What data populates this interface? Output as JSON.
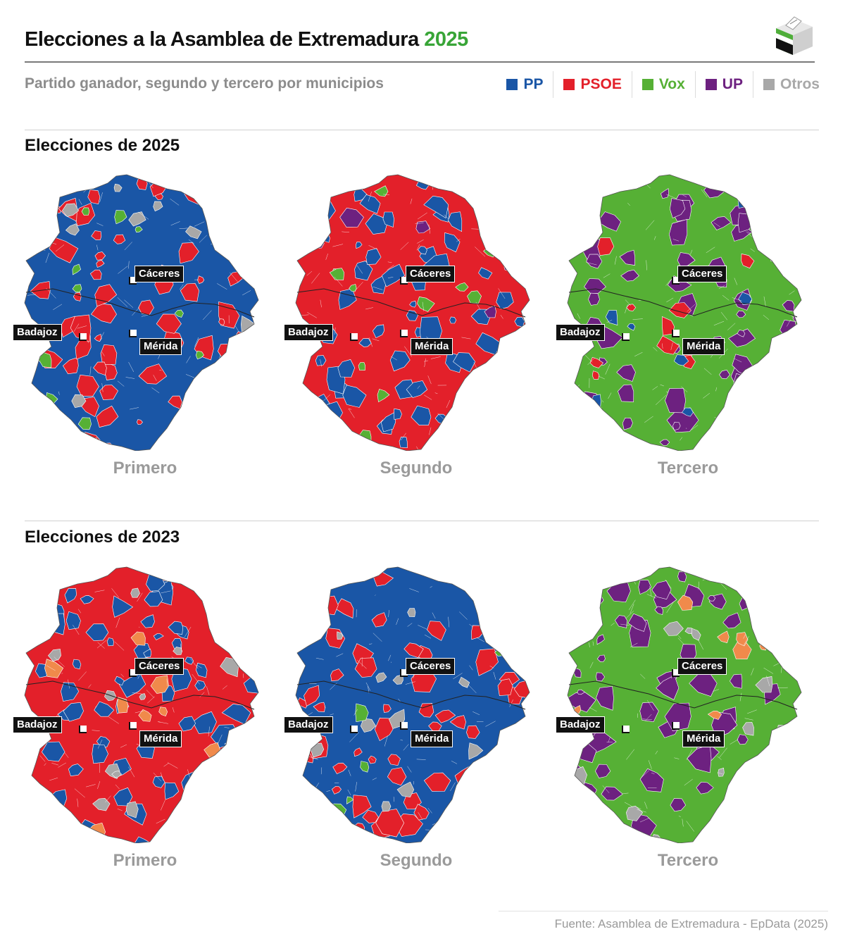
{
  "header": {
    "title_main": "Elecciones a la Asamblea de Extremadura ",
    "title_year": "2025",
    "subtitle": "Partido ganador, segundo y tercero por municipios"
  },
  "legend": [
    {
      "label": "PP",
      "color": "#1a56a6"
    },
    {
      "label": "PSOE",
      "color": "#e3202a"
    },
    {
      "label": "Vox",
      "color": "#56b035"
    },
    {
      "label": "UP",
      "color": "#6d2180"
    },
    {
      "label": "Otros",
      "color": "#a8a8a8"
    }
  ],
  "sections": [
    {
      "title": "Elecciones de 2025",
      "maps": [
        {
          "label": "Primero",
          "fill": "#1a56a6",
          "patches": [
            "#e3202a",
            "#56b035",
            "#a8a8a8"
          ]
        },
        {
          "label": "Segundo",
          "fill": "#e3202a",
          "patches": [
            "#1a56a6",
            "#56b035",
            "#6d2180"
          ]
        },
        {
          "label": "Tercero",
          "fill": "#56b035",
          "patches": [
            "#6d2180",
            "#e3202a",
            "#1a56a6"
          ]
        }
      ]
    },
    {
      "title": "Elecciones de 2023",
      "maps": [
        {
          "label": "Primero",
          "fill": "#e3202a",
          "patches": [
            "#1a56a6",
            "#a8a8a8",
            "#f08a4b"
          ]
        },
        {
          "label": "Segundo",
          "fill": "#1a56a6",
          "patches": [
            "#e3202a",
            "#a8a8a8",
            "#56b035"
          ]
        },
        {
          "label": "Tercero",
          "fill": "#56b035",
          "patches": [
            "#6d2180",
            "#a8a8a8",
            "#f08a4b"
          ]
        }
      ]
    }
  ],
  "cities": {
    "caceres": "Cáceres",
    "badajoz": "Badajoz",
    "merida": "Mérida"
  },
  "source": "Fuente: Asamblea de Extremadura - EpData (2025)"
}
